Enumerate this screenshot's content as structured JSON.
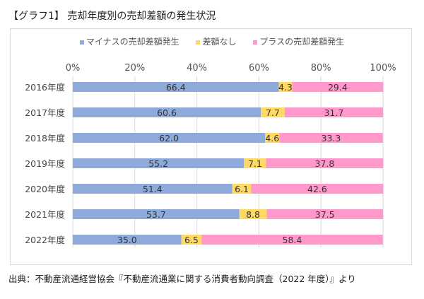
{
  "title": "【グラフ1】 売却年度別の売却差額の発生状況",
  "source": "出典：不動産流通経営協会『不動産流通業に関する消費者動向調査（2022 年度）』より",
  "chart_data": {
    "type": "bar",
    "stacked": true,
    "orientation": "horizontal",
    "categories": [
      "2016年度",
      "2017年度",
      "2018年度",
      "2019年度",
      "2020年度",
      "2021年度",
      "2022年度"
    ],
    "series": [
      {
        "name": "マイナスの売却差額発生",
        "color": "#8eaadb",
        "values": [
          66.4,
          60.6,
          62.0,
          55.2,
          51.4,
          53.7,
          35.0
        ]
      },
      {
        "name": "差額なし",
        "color": "#ffd966",
        "values": [
          4.3,
          7.7,
          4.6,
          7.1,
          6.1,
          8.8,
          6.5
        ]
      },
      {
        "name": "プラスの売却差額発生",
        "color": "#ff99cc",
        "values": [
          29.4,
          31.7,
          33.3,
          37.8,
          42.6,
          37.5,
          58.4
        ]
      }
    ],
    "xlim": [
      0,
      100
    ],
    "xticks": [
      "0%",
      "20%",
      "40%",
      "60%",
      "80%",
      "100%"
    ],
    "legend": "top"
  }
}
